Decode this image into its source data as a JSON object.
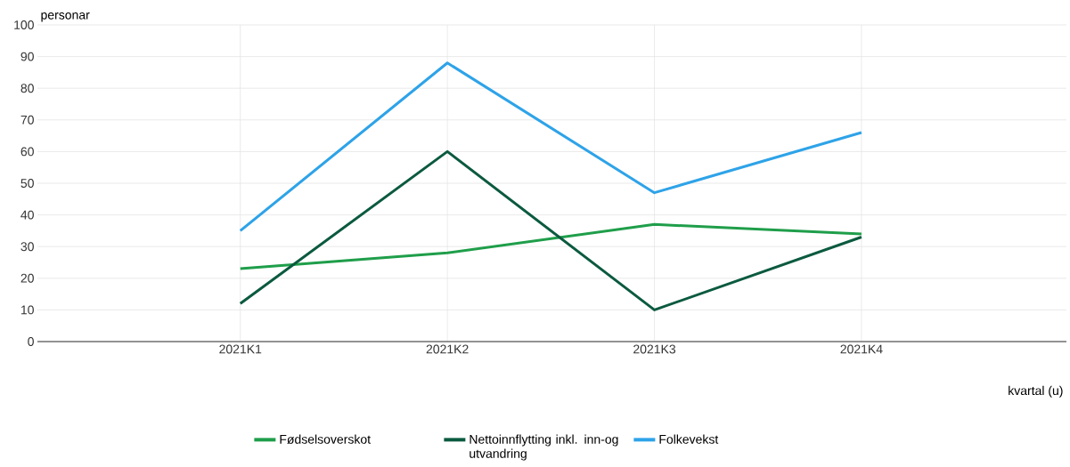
{
  "chart_data": {
    "type": "line",
    "ylabel": "personar",
    "xlabel": "kvartal (u)",
    "categories": [
      "2021K1",
      "2021K2",
      "2021K3",
      "2021K4"
    ],
    "series": [
      {
        "name": "Fødselsoverskot",
        "color": "#1f9e4a",
        "values": [
          23,
          28,
          37,
          34
        ]
      },
      {
        "name": "Nettoinnflytting inkl. inn-og utvandring",
        "color": "#0b5a3f",
        "values": [
          12,
          60,
          10,
          33
        ]
      },
      {
        "name": "Folkevekst",
        "color": "#2ea3e8",
        "values": [
          35,
          88,
          47,
          66
        ]
      }
    ],
    "ylim": [
      0,
      100
    ],
    "yticks": [
      0,
      10,
      20,
      30,
      40,
      50,
      60,
      70,
      80,
      90,
      100
    ],
    "grid": true,
    "legend": "bottom",
    "marker": "none",
    "line_style": "solid"
  }
}
